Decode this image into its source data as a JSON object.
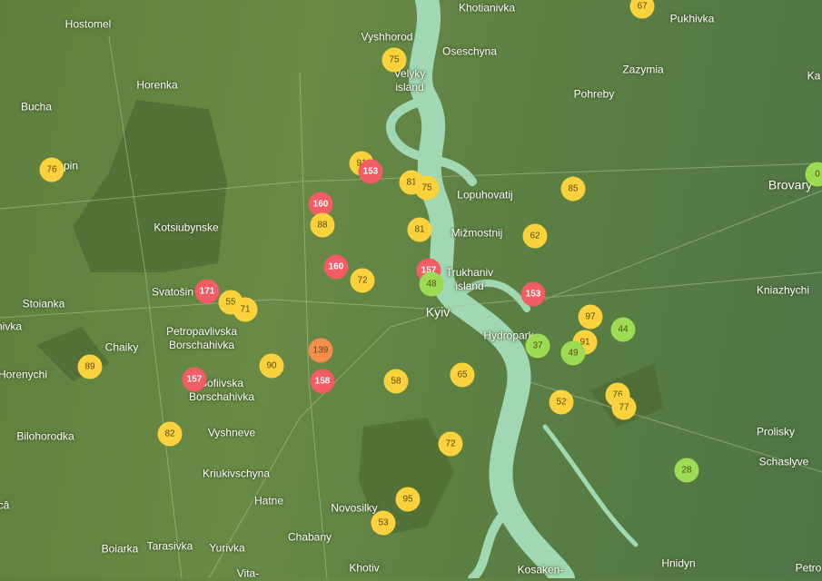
{
  "colors": {
    "good": "#9ddb52",
    "moderate": "#fcd23c",
    "unhealthy_sensitive": "#f78d4a",
    "unhealthy": "#f25c64",
    "water": "#9fd8b3",
    "land": "#678844",
    "forest": "#4d6b34"
  },
  "places": [
    "Hostomel",
    "Khotianivka",
    "Pukhivka",
    "Vyshhorod",
    "Oseschyna",
    "Zazymia",
    "Horenka",
    "Velyky island",
    "Pohreby",
    "Bucha",
    "pin",
    "Ka",
    "Brovary",
    "Lopuhovatij",
    "Kotsiubynske",
    "Mižmostnij",
    "Trukhaniv island",
    "Svatošin",
    "Stoianka",
    "Kniazhychi",
    "Kyiv",
    "nivka",
    "Petropavlivska Borschahivka",
    "Chaiky",
    "Hydropark",
    "Horenychi",
    "Sofiivska Borschahivka",
    "Bilohorodka",
    "Vyshneve",
    "Prolisky",
    "Kriukivschyna",
    "Schaslyve",
    "Hatne",
    "Novosilky",
    "câ",
    "Chabany",
    "Boiarka",
    "Tarasivka",
    "Yurivka",
    "Khotiv",
    "Kosaken-",
    "Hnidyn",
    "Petro",
    "Vita-"
  ],
  "markers": [
    {
      "value": "67",
      "level": "moderate"
    },
    {
      "value": "75",
      "level": "moderate"
    },
    {
      "value": "76",
      "level": "moderate"
    },
    {
      "value": "91",
      "level": "moderate"
    },
    {
      "value": "153",
      "level": "unhealthy"
    },
    {
      "value": "81",
      "level": "moderate"
    },
    {
      "value": "75",
      "level": "moderate"
    },
    {
      "value": "85",
      "level": "moderate"
    },
    {
      "value": "160",
      "level": "unhealthy"
    },
    {
      "value": "88",
      "level": "moderate"
    },
    {
      "value": "81",
      "level": "moderate"
    },
    {
      "value": "62",
      "level": "moderate"
    },
    {
      "value": "160",
      "level": "unhealthy"
    },
    {
      "value": "72",
      "level": "moderate"
    },
    {
      "value": "157",
      "level": "unhealthy"
    },
    {
      "value": "48",
      "level": "good"
    },
    {
      "value": "153",
      "level": "unhealthy"
    },
    {
      "value": "171",
      "level": "unhealthy"
    },
    {
      "value": "55",
      "level": "moderate"
    },
    {
      "value": "71",
      "level": "moderate"
    },
    {
      "value": "97",
      "level": "moderate"
    },
    {
      "value": "44",
      "level": "good"
    },
    {
      "value": "91",
      "level": "moderate"
    },
    {
      "value": "37",
      "level": "good"
    },
    {
      "value": "49",
      "level": "good"
    },
    {
      "value": "139",
      "level": "unhealthy_sensitive"
    },
    {
      "value": "89",
      "level": "moderate"
    },
    {
      "value": "90",
      "level": "moderate"
    },
    {
      "value": "157",
      "level": "unhealthy"
    },
    {
      "value": "158",
      "level": "unhealthy"
    },
    {
      "value": "58",
      "level": "moderate"
    },
    {
      "value": "65",
      "level": "moderate"
    },
    {
      "value": "52",
      "level": "moderate"
    },
    {
      "value": "76",
      "level": "moderate"
    },
    {
      "value": "77",
      "level": "moderate"
    },
    {
      "value": "82",
      "level": "moderate"
    },
    {
      "value": "72",
      "level": "moderate"
    },
    {
      "value": "28",
      "level": "good"
    },
    {
      "value": "95",
      "level": "moderate"
    },
    {
      "value": "53",
      "level": "moderate"
    },
    {
      "value": "0",
      "level": "good"
    }
  ]
}
